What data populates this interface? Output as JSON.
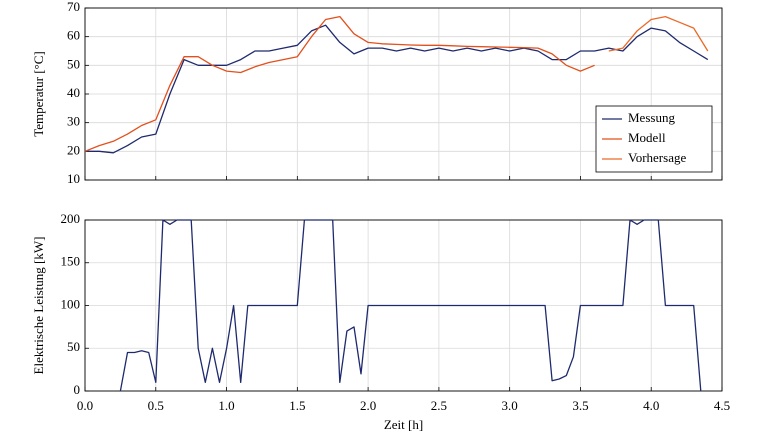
{
  "chart_data": [
    {
      "type": "line",
      "ylabel": "Temperatur [°C]",
      "x": [
        0,
        0.1,
        0.2,
        0.3,
        0.4,
        0.5,
        0.6,
        0.7,
        0.8,
        0.9,
        1.0,
        1.1,
        1.2,
        1.3,
        1.4,
        1.5,
        1.6,
        1.7,
        1.8,
        1.9,
        2.0,
        2.1,
        2.2,
        2.3,
        2.4,
        2.5,
        2.6,
        2.7,
        2.8,
        2.9,
        3.0,
        3.1,
        3.2,
        3.3,
        3.4,
        3.5,
        3.6,
        3.7,
        3.8,
        3.9,
        4.0,
        4.1,
        4.2,
        4.3,
        4.4
      ],
      "series": [
        {
          "name": "Messung",
          "color": "#1f2a6e",
          "values": [
            20,
            20,
            19.5,
            22,
            25,
            26,
            40,
            52,
            50,
            50,
            50,
            52,
            55,
            55,
            56,
            57,
            62,
            64,
            58,
            54,
            56,
            56,
            55,
            56,
            55,
            56,
            55,
            56,
            55,
            56,
            55,
            56,
            55,
            52,
            52,
            55,
            55,
            56,
            55,
            60,
            63,
            62,
            58,
            55,
            52
          ]
        },
        {
          "name": "Modell",
          "color": "#e2501c",
          "values": [
            20,
            22,
            23.5,
            26,
            29,
            31,
            43,
            53,
            53,
            50,
            48,
            47.5,
            49.5,
            51,
            52,
            53,
            60,
            66,
            67,
            61,
            58,
            57.5,
            57.3,
            57.1,
            57,
            57,
            56.8,
            56.6,
            56.5,
            56.4,
            56.3,
            56.2,
            56,
            54,
            50,
            48,
            50,
            null,
            null,
            null,
            null,
            null,
            null,
            null,
            null
          ]
        },
        {
          "name": "Vorhersage",
          "color": "#ea6a28",
          "values": [
            null,
            null,
            null,
            null,
            null,
            null,
            null,
            null,
            null,
            null,
            null,
            null,
            null,
            null,
            null,
            null,
            null,
            null,
            null,
            null,
            null,
            null,
            null,
            null,
            null,
            null,
            null,
            null,
            null,
            null,
            null,
            null,
            null,
            null,
            null,
            null,
            null,
            55,
            56,
            62,
            66,
            67,
            65,
            63,
            55
          ]
        }
      ],
      "xlim": [
        0,
        4.5
      ],
      "xticks": [
        0,
        0.5,
        1,
        1.5,
        2,
        2.5,
        3,
        3.5,
        4,
        4.5
      ],
      "ylim": [
        10,
        70
      ],
      "yticks": [
        10,
        20,
        30,
        40,
        50,
        60,
        70
      ],
      "grid": true,
      "legend": "lower right"
    },
    {
      "type": "line",
      "xlabel": "Zeit [h]",
      "ylabel": "Elektrische Leistung [kW]",
      "x": [
        0,
        0.05,
        0.1,
        0.15,
        0.2,
        0.25,
        0.3,
        0.35,
        0.4,
        0.45,
        0.5,
        0.55,
        0.6,
        0.65,
        0.7,
        0.75,
        0.8,
        0.85,
        0.9,
        0.95,
        1.0,
        1.05,
        1.1,
        1.15,
        1.2,
        1.25,
        1.3,
        1.35,
        1.4,
        1.45,
        1.5,
        1.55,
        1.6,
        1.65,
        1.7,
        1.75,
        1.8,
        1.85,
        1.9,
        1.95,
        2.0,
        2.05,
        2.1,
        2.15,
        2.2,
        2.25,
        2.3,
        2.35,
        2.4,
        2.45,
        2.5,
        2.55,
        2.6,
        2.65,
        2.7,
        2.75,
        2.8,
        2.85,
        2.9,
        2.95,
        3.0,
        3.05,
        3.1,
        3.15,
        3.2,
        3.25,
        3.3,
        3.35,
        3.4,
        3.45,
        3.5,
        3.55,
        3.6,
        3.65,
        3.7,
        3.75,
        3.8,
        3.85,
        3.9,
        3.95,
        4.0,
        4.05,
        4.1,
        4.15,
        4.2,
        4.25,
        4.3,
        4.35,
        4.4
      ],
      "series": [
        {
          "color": "#1f2a6e",
          "values": [
            null,
            null,
            null,
            null,
            null,
            0,
            45,
            45,
            47,
            45,
            10,
            200,
            195,
            200,
            200,
            200,
            50,
            10,
            50,
            10,
            50,
            100,
            10,
            100,
            100,
            100,
            100,
            100,
            100,
            100,
            100,
            200,
            200,
            200,
            200,
            200,
            10,
            70,
            75,
            20,
            100,
            100,
            100,
            100,
            100,
            100,
            100,
            100,
            100,
            100,
            100,
            100,
            100,
            100,
            100,
            100,
            100,
            100,
            100,
            100,
            100,
            100,
            100,
            100,
            100,
            100,
            12,
            14,
            18,
            40,
            100,
            100,
            100,
            100,
            100,
            100,
            100,
            200,
            195,
            200,
            200,
            200,
            100,
            100,
            100,
            100,
            100,
            0,
            null
          ]
        }
      ],
      "xlim": [
        0,
        4.5
      ],
      "xticks": [
        {
          "value": 0,
          "label": "0.0"
        },
        0.5,
        {
          "value": 1,
          "label": "1.0"
        },
        1.5,
        {
          "value": 2,
          "label": "2.0"
        },
        2.5,
        {
          "value": 3,
          "label": "3.0"
        },
        3.5,
        {
          "value": 4,
          "label": "4.0"
        },
        4.5
      ],
      "ylim": [
        0,
        200
      ],
      "yticks": [
        0,
        50,
        100,
        150,
        200
      ],
      "grid": true
    }
  ]
}
